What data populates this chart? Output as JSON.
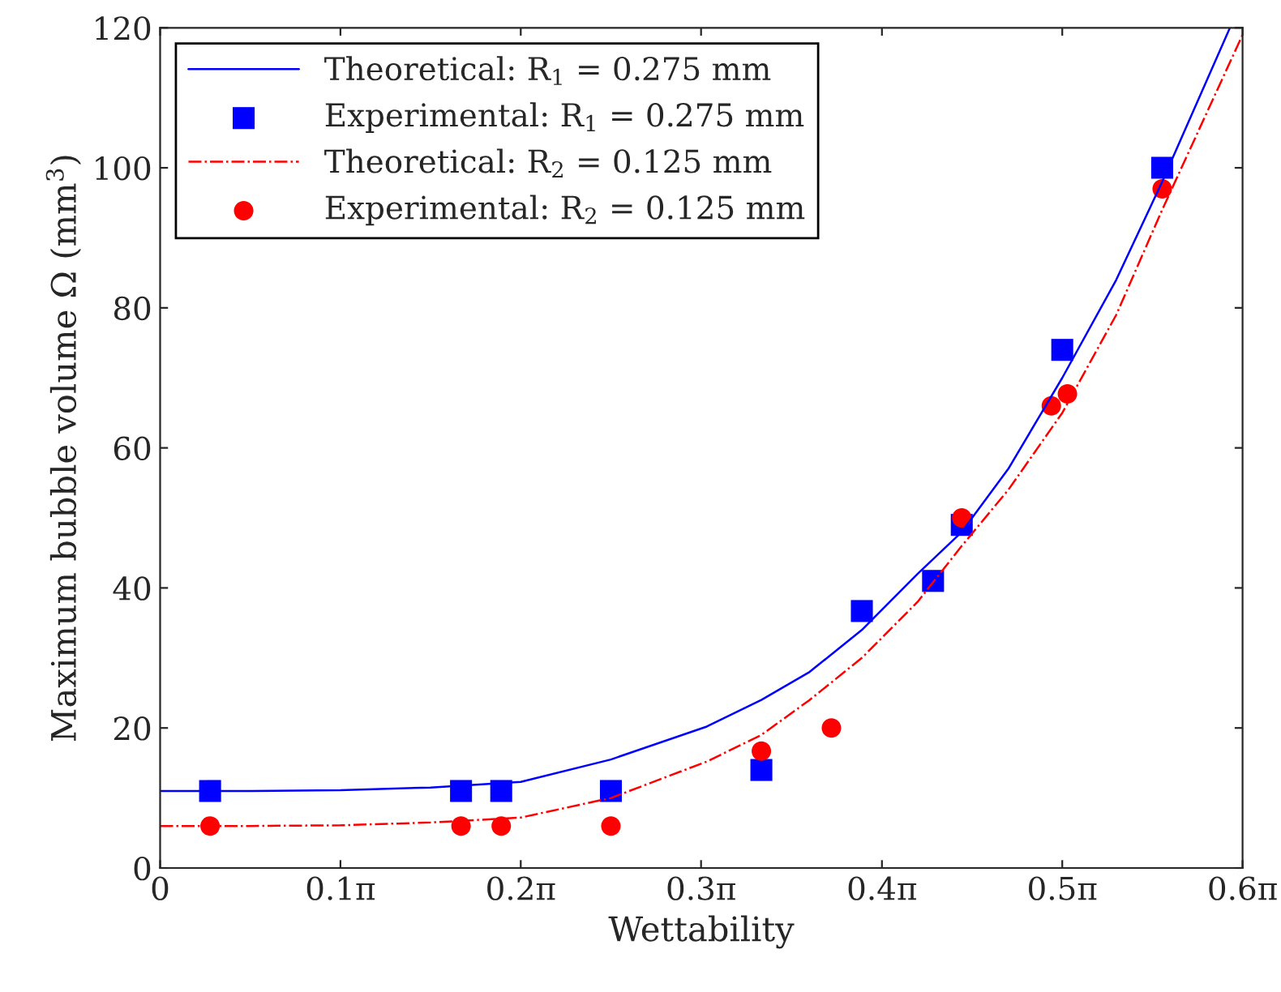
{
  "chart_data": {
    "type": "line",
    "xlabel": "Wettability",
    "ylabel": "Maximum bubble volume Ω (mm$^{3}$)",
    "xlim": [
      0,
      1.885
    ],
    "xticks": [
      0,
      {
        "value": 0.314,
        "label": "0.1π"
      },
      {
        "value": 0.628,
        "label": "0.2π"
      },
      {
        "value": 0.942,
        "label": "0.3π"
      },
      {
        "value": 1.257,
        "label": "0.4π"
      },
      {
        "value": 1.571,
        "label": "0.5π"
      },
      {
        "value": 1.885,
        "label": "0.6π"
      }
    ],
    "ylim": [
      0,
      120
    ],
    "yticks": [
      0,
      20,
      40,
      60,
      80,
      100,
      120
    ],
    "grid": false,
    "legend": "top left",
    "series": [
      {
        "name": "Theoretical: R$_{1}$ = 0.275 mm",
        "type": "line",
        "color": "#0000ff",
        "line_style": "solid",
        "x": [
          0,
          0.157,
          0.314,
          0.471,
          0.628,
          0.785,
          0.952,
          1.047,
          1.131,
          1.222,
          1.319,
          1.396,
          1.477,
          1.571,
          1.665,
          1.745,
          1.863
        ],
        "values": [
          11,
          11,
          11.1,
          11.5,
          12.3,
          15.5,
          20.2,
          24,
          28,
          34,
          42,
          48,
          57,
          70,
          84,
          98,
          120
        ]
      },
      {
        "name": "Experimental: R$_{1}$ = 0.275 mm",
        "type": "scatter",
        "color": "#0000ff",
        "marker": "square",
        "x": [
          0.087,
          0.524,
          0.594,
          0.785,
          1.047,
          1.222,
          1.346,
          1.396,
          1.571,
          1.745
        ],
        "values": [
          11,
          11,
          11,
          11,
          14,
          36.7,
          41,
          49,
          74,
          100
        ]
      },
      {
        "name": "Theoretical: R$_{2}$ = 0.125 mm",
        "type": "line",
        "color": "#ff0000",
        "line_style": "dashdot",
        "x": [
          0,
          0.157,
          0.314,
          0.471,
          0.628,
          0.785,
          0.952,
          1.047,
          1.131,
          1.222,
          1.319,
          1.396,
          1.477,
          1.571,
          1.665,
          1.745,
          1.885
        ],
        "values": [
          6,
          6,
          6.1,
          6.5,
          7.2,
          10,
          15.2,
          19,
          24,
          30,
          38,
          46,
          54,
          65,
          79,
          94,
          119
        ]
      },
      {
        "name": "Experimental: R$_{2}$ = 0.125 mm",
        "type": "scatter",
        "color": "#ff0000",
        "marker": "circle",
        "x": [
          0.087,
          0.524,
          0.594,
          0.785,
          1.047,
          1.169,
          1.396,
          1.552,
          1.58,
          1.745
        ],
        "values": [
          6,
          6,
          6,
          6,
          16.7,
          20,
          50,
          66,
          67.7,
          97
        ]
      }
    ]
  }
}
